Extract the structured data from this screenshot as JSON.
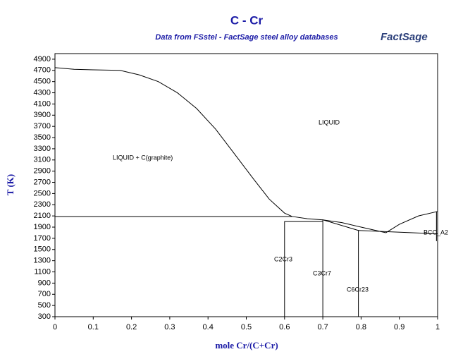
{
  "chart_data": {
    "type": "line",
    "title": "C - Cr",
    "subtitle": "Data from FSstel - FactSage steel alloy databases",
    "logo": "FactSage",
    "x_label": "mole Cr/(C+Cr)",
    "y_label": "T (K)",
    "xlim": [
      0,
      1
    ],
    "ylim": [
      300,
      5000
    ],
    "xticks": [
      0,
      0.1,
      0.2,
      0.3,
      0.4,
      0.5,
      0.6,
      0.7,
      0.8,
      0.9,
      1
    ],
    "yticks": [
      300,
      500,
      700,
      900,
      1100,
      1300,
      1500,
      1700,
      1900,
      2100,
      2300,
      2500,
      2700,
      2900,
      3100,
      3300,
      3500,
      3700,
      3900,
      4100,
      4300,
      4500,
      4700,
      4900
    ],
    "annotations": [
      "LIQUID",
      "LIQUID + C(graphite)",
      "C2Cr3",
      "C3Cr7",
      "C6Cr23",
      "BCC_A2"
    ],
    "series": [
      {
        "color": "#000000",
        "x": [
          0,
          0.05,
          0.1,
          0.17,
          0.22,
          0.27,
          0.32,
          0.37,
          0.42,
          0.47,
          0.52,
          0.56,
          0.6,
          0.62
        ],
        "values": [
          4750,
          4720,
          4710,
          4700,
          4620,
          4500,
          4300,
          4020,
          3650,
          3200,
          2750,
          2400,
          2150,
          2090
        ]
      },
      {
        "color": "#000000",
        "x": [
          0.62,
          0.66,
          0.7,
          0.75,
          0.8,
          0.865
        ],
        "values": [
          2090,
          2050,
          2030,
          1980,
          1900,
          1800
        ]
      },
      {
        "color": "#000000",
        "x": [
          0.865,
          0.9,
          0.95,
          1
        ],
        "values": [
          1800,
          1950,
          2100,
          2180
        ]
      },
      {
        "color": "#000000",
        "x": [
          0,
          0.62
        ],
        "values": [
          2090,
          2090
        ]
      },
      {
        "color": "#000000",
        "x": [
          0.6,
          0.6,
          0.7
        ],
        "values": [
          300,
          2000,
          2000
        ]
      },
      {
        "color": "#000000",
        "x": [
          0.7,
          0.7,
          0.793
        ],
        "values": [
          300,
          2030,
          1840
        ]
      },
      {
        "color": "#000000",
        "x": [
          0.793,
          0.793,
          1
        ],
        "values": [
          300,
          1840,
          1780
        ]
      },
      {
        "color": "#000000",
        "x": [
          0.997,
          0.997
        ],
        "values": [
          1650,
          2180
        ]
      }
    ]
  }
}
